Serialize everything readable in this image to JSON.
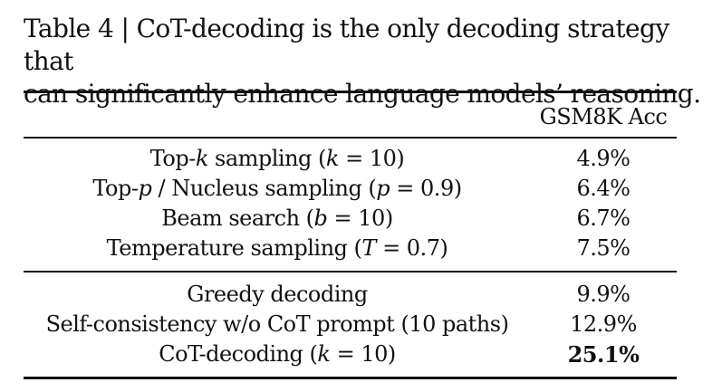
{
  "caption": {
    "line1": "Table 4 | CoT-decoding is the only decoding strategy that",
    "line2": "can significantly enhance language models’ reasoning."
  },
  "table": {
    "column_header": "GSM8K Acc",
    "group1": [
      {
        "pre": "Top-",
        "var": "k",
        "mid": " sampling (",
        "var2": "k",
        "post": " = 10)",
        "acc": "4.9%"
      },
      {
        "pre": "Top-",
        "var": "p",
        "mid": " / Nucleus sampling (",
        "var2": "p",
        "post": " = 0.9)",
        "acc": "6.4%"
      },
      {
        "pre": "Beam search (",
        "var": "b",
        "mid": " = 10)",
        "var2": "",
        "post": "",
        "acc": "6.7%"
      },
      {
        "pre": "Temperature sampling (",
        "var": "T",
        "mid": " = 0.7)",
        "var2": "",
        "post": "",
        "acc": "7.5%"
      }
    ],
    "group2": [
      {
        "pre": "Greedy decoding",
        "var": "",
        "mid": "",
        "var2": "",
        "post": "",
        "acc": "9.9%",
        "bold": false
      },
      {
        "pre": "Self-consistency w/o CoT prompt (10 paths)",
        "var": "",
        "mid": "",
        "var2": "",
        "post": "",
        "acc": "12.9%",
        "bold": false
      },
      {
        "pre": "CoT-decoding (",
        "var": "k",
        "mid": " = 10)",
        "var2": "",
        "post": "",
        "acc": "25.1%",
        "bold": true
      }
    ]
  }
}
